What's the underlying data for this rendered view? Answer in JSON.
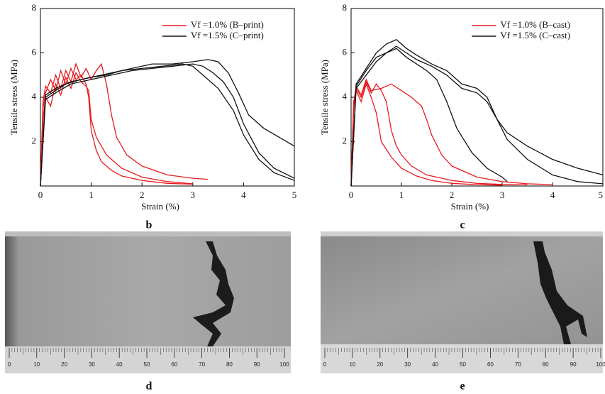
{
  "chart_data": [
    {
      "type": "line",
      "xlabel": "Strain (%)",
      "ylabel": "Tensile stress (MPa)",
      "xlim": [
        0,
        5
      ],
      "xticks": [
        0,
        1,
        2,
        3,
        4,
        5
      ],
      "ylim": [
        0,
        8
      ],
      "yticks": [
        2,
        4,
        6,
        8
      ],
      "legend": "upper right",
      "series": [
        {
          "name": "Vf =1.0% (B–print)",
          "color": "#e8191c",
          "curves": [
            {
              "x": [
                0,
                0.05,
                0.1,
                0.2,
                0.3,
                0.4,
                0.5,
                0.6,
                0.7,
                0.8,
                0.9,
                0.95,
                1.0,
                1.1,
                1.2,
                1.4,
                1.6,
                2.0,
                2.5,
                3.0
              ],
              "y": [
                0,
                3.5,
                4.2,
                4.8,
                4.3,
                5.2,
                4.6,
                5.3,
                4.8,
                5.0,
                4.6,
                4.0,
                2.5,
                1.6,
                1.1,
                0.7,
                0.45,
                0.25,
                0.12,
                0.08
              ]
            },
            {
              "x": [
                0,
                0.05,
                0.1,
                0.2,
                0.3,
                0.4,
                0.5,
                0.6,
                0.7,
                0.8,
                0.9,
                1.0,
                1.1,
                1.2,
                1.3,
                1.4,
                1.5,
                1.7,
                2.0,
                2.5,
                3.0,
                3.3
              ],
              "y": [
                0,
                3.8,
                4.5,
                4.2,
                5.0,
                4.4,
                5.2,
                4.7,
                5.5,
                4.9,
                5.3,
                4.8,
                5.2,
                5.5,
                4.6,
                3.2,
                2.2,
                1.4,
                0.9,
                0.5,
                0.35,
                0.3
              ]
            },
            {
              "x": [
                0,
                0.05,
                0.1,
                0.2,
                0.3,
                0.4,
                0.5,
                0.6,
                0.7,
                0.8,
                0.9,
                0.95,
                1.0,
                1.1,
                1.3,
                1.6,
                2.0,
                2.5,
                3.0
              ],
              "y": [
                0,
                3.0,
                4.0,
                3.6,
                4.6,
                4.1,
                4.9,
                4.4,
                5.1,
                4.7,
                4.5,
                4.3,
                3.0,
                2.2,
                1.4,
                0.8,
                0.4,
                0.2,
                0.1
              ]
            }
          ]
        },
        {
          "name": "Vf =1.5% (C–print)",
          "color": "#111111",
          "curves": [
            {
              "x": [
                0,
                0.1,
                0.3,
                0.5,
                0.8,
                1.0,
                1.3,
                1.6,
                2.0,
                2.4,
                2.8,
                3.0,
                3.2,
                3.5,
                3.8,
                4.0,
                4.3,
                4.6,
                5.0
              ],
              "y": [
                0,
                4.0,
                4.3,
                4.6,
                4.8,
                4.9,
                5.0,
                5.2,
                5.3,
                5.4,
                5.5,
                5.4,
                5.0,
                4.4,
                3.4,
                2.3,
                1.2,
                0.6,
                0.25
              ]
            },
            {
              "x": [
                0,
                0.1,
                0.3,
                0.6,
                1.0,
                1.4,
                1.8,
                2.2,
                2.6,
                3.0,
                3.3,
                3.5,
                3.7,
                3.9,
                4.1,
                4.4,
                4.7,
                5.0
              ],
              "y": [
                0,
                4.1,
                4.4,
                4.7,
                4.9,
                5.1,
                5.3,
                5.5,
                5.5,
                5.6,
                5.7,
                5.6,
                5.1,
                4.2,
                3.2,
                2.6,
                2.2,
                1.8
              ]
            },
            {
              "x": [
                0,
                0.1,
                0.3,
                0.6,
                1.0,
                1.4,
                1.8,
                2.2,
                2.6,
                3.0,
                3.2,
                3.4,
                3.6,
                3.8,
                4.0,
                4.3,
                4.6,
                5.0
              ],
              "y": [
                0,
                3.9,
                4.2,
                4.6,
                4.8,
                5.0,
                5.2,
                5.3,
                5.4,
                5.5,
                5.4,
                5.1,
                4.7,
                4.0,
                2.8,
                1.5,
                0.8,
                0.35
              ]
            }
          ]
        }
      ]
    },
    {
      "type": "line",
      "xlabel": "Strain (%)",
      "ylabel": "Tensile stress (MPa)",
      "xlim": [
        0,
        5
      ],
      "xticks": [
        0,
        1,
        2,
        3,
        4,
        5
      ],
      "ylim": [
        0,
        8
      ],
      "yticks": [
        2,
        4,
        6,
        8
      ],
      "legend": "upper right",
      "series": [
        {
          "name": "Vf =1.0% (B–cast)",
          "color": "#e8191c",
          "curves": [
            {
              "x": [
                0,
                0.05,
                0.1,
                0.2,
                0.3,
                0.4,
                0.5,
                0.6,
                0.8,
                1.0,
                1.3,
                1.6,
                2.0,
                2.5,
                3.0
              ],
              "y": [
                0,
                3.5,
                4.3,
                3.8,
                4.6,
                4.0,
                3.3,
                2.0,
                1.3,
                0.8,
                0.45,
                0.25,
                0.12,
                0.06,
                0.04
              ]
            },
            {
              "x": [
                0,
                0.05,
                0.1,
                0.2,
                0.3,
                0.4,
                0.5,
                0.6,
                0.7,
                0.8,
                0.9,
                1.0,
                1.2,
                1.5,
                2.0,
                2.5,
                3.0,
                3.5
              ],
              "y": [
                0,
                3.8,
                4.4,
                4.0,
                4.7,
                4.2,
                4.6,
                4.3,
                3.8,
                2.5,
                1.8,
                1.4,
                0.9,
                0.5,
                0.25,
                0.12,
                0.07,
                0.05
              ]
            },
            {
              "x": [
                0,
                0.05,
                0.1,
                0.2,
                0.3,
                0.4,
                0.6,
                0.8,
                1.0,
                1.2,
                1.4,
                1.5,
                1.6,
                1.8,
                2.0,
                2.5,
                3.0,
                3.5,
                4.0
              ],
              "y": [
                0,
                3.6,
                4.5,
                4.1,
                4.8,
                4.3,
                4.4,
                4.6,
                4.3,
                4.0,
                3.6,
                3.0,
                2.3,
                1.4,
                0.9,
                0.4,
                0.2,
                0.1,
                0.06
              ]
            }
          ]
        },
        {
          "name": "Vf =1.5% (C–cast)",
          "color": "#111111",
          "curves": [
            {
              "x": [
                0,
                0.1,
                0.3,
                0.5,
                0.7,
                0.9,
                1.1,
                1.3,
                1.5,
                1.7,
                1.9,
                2.1,
                2.4,
                2.7,
                3.0,
                3.1
              ],
              "y": [
                0,
                4.5,
                5.2,
                5.8,
                6.0,
                6.2,
                5.8,
                5.5,
                5.2,
                4.8,
                3.8,
                2.6,
                1.5,
                0.8,
                0.4,
                0.2
              ]
            },
            {
              "x": [
                0,
                0.1,
                0.3,
                0.5,
                0.7,
                0.9,
                1.1,
                1.3,
                1.6,
                1.9,
                2.2,
                2.5,
                2.7,
                2.9,
                3.1,
                3.5,
                4.0,
                4.5,
                5.0
              ],
              "y": [
                0,
                4.6,
                5.3,
                6.0,
                6.4,
                6.6,
                6.2,
                5.9,
                5.5,
                5.2,
                4.6,
                4.4,
                4.0,
                3.0,
                2.1,
                1.2,
                0.5,
                0.2,
                0.1
              ]
            },
            {
              "x": [
                0,
                0.1,
                0.3,
                0.5,
                0.7,
                0.9,
                1.1,
                1.3,
                1.6,
                1.9,
                2.2,
                2.5,
                2.7,
                2.9,
                3.1,
                3.5,
                4.0,
                4.5,
                5.0
              ],
              "y": [
                0,
                4.4,
                5.0,
                5.6,
                6.0,
                6.3,
                6.0,
                5.7,
                5.4,
                5.0,
                4.4,
                4.2,
                3.8,
                3.0,
                2.4,
                1.8,
                1.2,
                0.8,
                0.5
              ]
            }
          ]
        }
      ]
    }
  ],
  "panel_labels": [
    "b",
    "c",
    "d",
    "e"
  ],
  "photos": [
    {
      "scale_ticks": [
        0,
        10,
        20,
        30,
        40,
        50,
        60,
        70,
        80,
        90,
        100
      ]
    },
    {
      "scale_ticks": [
        0,
        10,
        20,
        30,
        40,
        50,
        60,
        70,
        80,
        90,
        100
      ]
    }
  ]
}
